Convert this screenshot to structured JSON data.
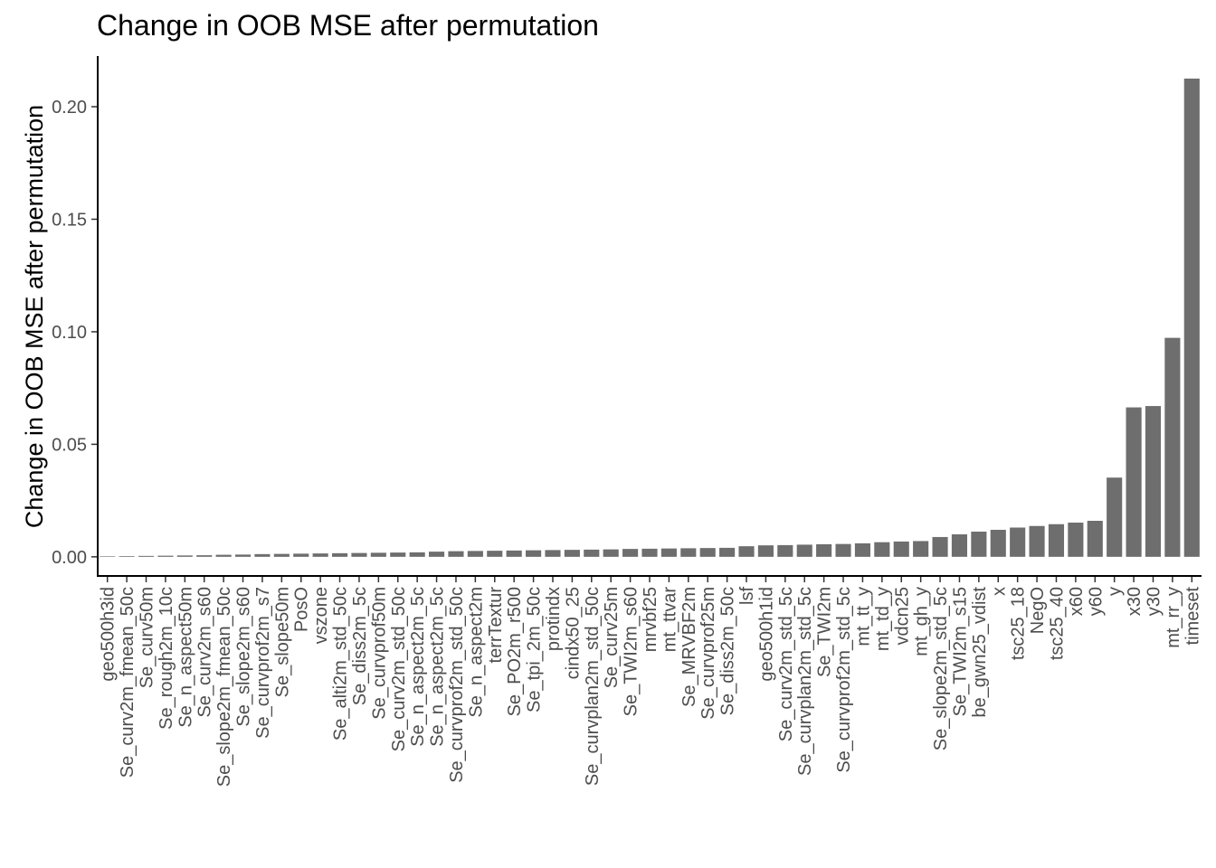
{
  "chart_data": {
    "type": "bar",
    "title": "Change in OOB MSE after permutation",
    "xlabel": "",
    "ylabel": "Change in OOB MSE after permutation",
    "ylim": [
      -0.0085,
      0.2225
    ],
    "yticks": [
      "0.00",
      "0.05",
      "0.10",
      "0.15",
      "0.20"
    ],
    "ytick_values": [
      0,
      0.05,
      0.1,
      0.15,
      0.2
    ],
    "grid": false,
    "legend": "none",
    "bar_color": "#6e6e6e",
    "categories": [
      "geo500h3id",
      "Se_curv2m_fmean_50c",
      "Se_curv50m",
      "Se_rough2m_10c",
      "Se_n_aspect50m",
      "Se_curv2m_s60",
      "Se_slope2m_fmean_50c",
      "Se_slope2m_s60",
      "Se_curvprof2m_s7",
      "Se_slope50m",
      "PosO",
      "vszone",
      "Se_alti2m_std_50c",
      "Se_diss2m_5c",
      "Se_curvprof50m",
      "Se_curv2m_std_50c",
      "Se_n_aspect2m_5c",
      "Se_n_aspect2m_5c",
      "Se_curvprof2m_std_50c",
      "Se_n_aspect2m",
      "terrTextur",
      "Se_PO2m_r500",
      "Se_tpi_2m_50c",
      "protindx",
      "cindx50_25",
      "Se_curvplan2m_std_50c",
      "Se_curv25m",
      "Se_TWI2m_s60",
      "mrvbf25",
      "mt_ttvar",
      "Se_MRVBF2m",
      "Se_curvprof25m",
      "Se_diss2m_50c",
      "lsf",
      "geo500h1id",
      "Se_curv2m_std_5c",
      "Se_curvplan2m_std_5c",
      "Se_TWI2m",
      "Se_curvprof2m_std_5c",
      "mt_tt_y",
      "mt_td_y",
      "vdcn25",
      "mt_gh_y",
      "Se_slope2m_std_5c",
      "Se_TWI2m_s15",
      "be_gwn25_vdist",
      "x",
      "tsc25_18",
      "NegO",
      "tsc25_40",
      "x60",
      "y60",
      "y",
      "x30",
      "y30",
      "mt_rr_y",
      "timeset"
    ],
    "values": [
      0.0002,
      0.0003,
      0.0004,
      0.0005,
      0.0006,
      0.0007,
      0.0009,
      0.001,
      0.0012,
      0.0013,
      0.0014,
      0.0015,
      0.0016,
      0.0017,
      0.0018,
      0.0019,
      0.002,
      0.0023,
      0.0025,
      0.0026,
      0.0027,
      0.0028,
      0.0029,
      0.003,
      0.0031,
      0.0032,
      0.0033,
      0.0035,
      0.0036,
      0.0037,
      0.0038,
      0.0039,
      0.004,
      0.0047,
      0.0051,
      0.0052,
      0.0054,
      0.0056,
      0.0057,
      0.006,
      0.0065,
      0.0068,
      0.007,
      0.0088,
      0.01,
      0.0112,
      0.012,
      0.013,
      0.0137,
      0.0145,
      0.0152,
      0.016,
      0.0352,
      0.0664,
      0.067,
      0.0973,
      0.2125
    ]
  }
}
